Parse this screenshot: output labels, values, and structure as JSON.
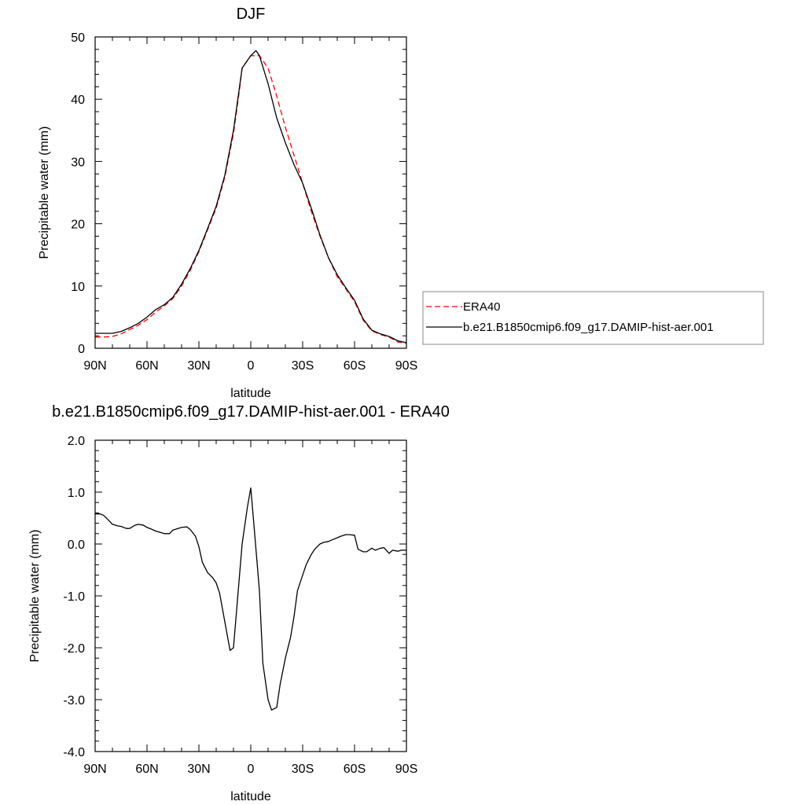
{
  "chart_data": [
    {
      "type": "line",
      "title": "DJF",
      "xlabel": "latitude",
      "ylabel": "Precipitable water (mm)",
      "xlim": [
        -90,
        90
      ],
      "ylim": [
        0,
        50
      ],
      "x_ticks": [
        {
          "value": -90,
          "label": "90N"
        },
        {
          "value": -60,
          "label": "60N"
        },
        {
          "value": -30,
          "label": "30N"
        },
        {
          "value": 0,
          "label": "0"
        },
        {
          "value": 30,
          "label": "30S"
        },
        {
          "value": 60,
          "label": "60S"
        },
        {
          "value": 90,
          "label": "90S"
        }
      ],
      "y_ticks": [
        {
          "value": 0,
          "label": "0"
        },
        {
          "value": 10,
          "label": "10"
        },
        {
          "value": 20,
          "label": "20"
        },
        {
          "value": 30,
          "label": "30"
        },
        {
          "value": 40,
          "label": "40"
        },
        {
          "value": 50,
          "label": "50"
        }
      ],
      "legend_position": "right",
      "series": [
        {
          "name": "ERA40",
          "color": "#ff0000",
          "dash": "dashed",
          "x": [
            -90,
            -85,
            -80,
            -75,
            -70,
            -65,
            -60,
            -55,
            -50,
            -45,
            -40,
            -35,
            -30,
            -25,
            -20,
            -15,
            -10,
            -7,
            -5,
            0,
            5,
            10,
            15,
            20,
            25,
            30,
            35,
            40,
            45,
            50,
            55,
            60,
            65,
            70,
            75,
            80,
            85,
            90
          ],
          "y": [
            1.8,
            1.8,
            1.9,
            2.3,
            3.0,
            3.7,
            4.6,
            5.8,
            6.8,
            8.0,
            10.0,
            12.5,
            15.5,
            19.0,
            22.5,
            27.5,
            34.5,
            40.5,
            45.0,
            47.0,
            47.0,
            45.0,
            40.5,
            35.5,
            31.0,
            26.5,
            22.0,
            18.0,
            14.5,
            11.5,
            9.5,
            7.5,
            4.5,
            2.8,
            2.2,
            1.8,
            1.0,
            0.8
          ]
        },
        {
          "name": "b.e21.B1850cmip6.f09_g17.DAMIP-hist-aer.001",
          "color": "#000000",
          "dash": "solid",
          "x": [
            -90,
            -85,
            -80,
            -75,
            -70,
            -65,
            -60,
            -55,
            -50,
            -45,
            -40,
            -35,
            -30,
            -25,
            -20,
            -15,
            -10,
            -7,
            -5,
            0,
            3,
            5,
            10,
            15,
            20,
            25,
            30,
            35,
            40,
            45,
            50,
            55,
            60,
            65,
            70,
            75,
            80,
            85,
            90
          ],
          "y": [
            2.4,
            2.4,
            2.4,
            2.7,
            3.3,
            4.0,
            5.0,
            6.2,
            7.0,
            8.2,
            10.3,
            12.8,
            15.7,
            19.2,
            22.8,
            27.8,
            35.0,
            41.0,
            45.0,
            47.0,
            47.8,
            47.0,
            42.5,
            37.0,
            33.0,
            29.5,
            26.5,
            22.5,
            18.2,
            14.5,
            11.8,
            9.7,
            7.7,
            4.7,
            2.9,
            2.3,
            1.9,
            1.2,
            0.9
          ]
        }
      ]
    },
    {
      "type": "line",
      "title": "b.e21.B1850cmip6.f09_g17.DAMIP-hist-aer.001 - ERA40",
      "xlabel": "latitude",
      "ylabel": "Precipitable water (mm)",
      "xlim": [
        -90,
        90
      ],
      "ylim": [
        -4,
        2
      ],
      "x_ticks": [
        {
          "value": -90,
          "label": "90N"
        },
        {
          "value": -60,
          "label": "60N"
        },
        {
          "value": -30,
          "label": "30N"
        },
        {
          "value": 0,
          "label": "0"
        },
        {
          "value": 30,
          "label": "30S"
        },
        {
          "value": 60,
          "label": "60S"
        },
        {
          "value": 90,
          "label": "90S"
        }
      ],
      "y_ticks": [
        {
          "value": 2,
          "label": "2.0"
        },
        {
          "value": 1,
          "label": "1.0"
        },
        {
          "value": 0,
          "label": "0.0"
        },
        {
          "value": -1,
          "label": "-1.0"
        },
        {
          "value": -2,
          "label": "-2.0"
        },
        {
          "value": -3,
          "label": "-3.0"
        },
        {
          "value": -4,
          "label": "-4.0"
        }
      ],
      "series": [
        {
          "color": "#000000",
          "dash": "solid",
          "x": [
            -90,
            -87,
            -85,
            -82,
            -80,
            -77,
            -75,
            -72,
            -70,
            -67,
            -65,
            -62,
            -60,
            -57,
            -55,
            -50,
            -47,
            -45,
            -42,
            -40,
            -37,
            -35,
            -32,
            -30,
            -28,
            -25,
            -22,
            -20,
            -18,
            -15,
            -12,
            -10,
            -7,
            -5,
            -2,
            0,
            2,
            5,
            7,
            10,
            12,
            15,
            17,
            20,
            23,
            25,
            27,
            30,
            32,
            35,
            37,
            40,
            42,
            45,
            47,
            50,
            52,
            55,
            57,
            60,
            62,
            65,
            67,
            70,
            72,
            75,
            77,
            80,
            82,
            85,
            87,
            90
          ],
          "y": [
            0.58,
            0.58,
            0.55,
            0.45,
            0.38,
            0.35,
            0.34,
            0.3,
            0.3,
            0.36,
            0.38,
            0.36,
            0.32,
            0.28,
            0.25,
            0.2,
            0.2,
            0.27,
            0.3,
            0.32,
            0.33,
            0.28,
            0.15,
            -0.05,
            -0.35,
            -0.55,
            -0.65,
            -0.75,
            -0.95,
            -1.5,
            -2.05,
            -2.0,
            -0.8,
            0.0,
            0.7,
            1.08,
            0.3,
            -0.9,
            -2.3,
            -3.0,
            -3.2,
            -3.15,
            -2.7,
            -2.2,
            -1.8,
            -1.4,
            -0.9,
            -0.6,
            -0.4,
            -0.2,
            -0.1,
            0.0,
            0.03,
            0.05,
            0.08,
            0.12,
            0.15,
            0.18,
            0.18,
            0.17,
            -0.1,
            -0.15,
            -0.15,
            -0.08,
            -0.12,
            -0.08,
            -0.07,
            -0.18,
            -0.12,
            -0.14,
            -0.12,
            -0.12
          ]
        }
      ]
    }
  ]
}
